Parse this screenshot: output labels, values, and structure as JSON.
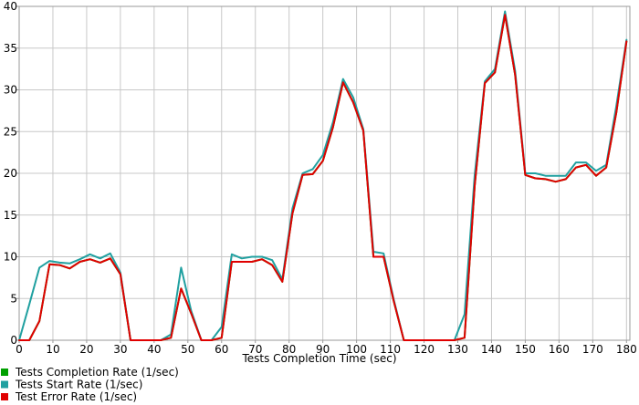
{
  "chart_data": {
    "type": "line",
    "title": "",
    "xlabel": "Tests Completion Time (sec)",
    "ylabel": "",
    "xlim": [
      0,
      181
    ],
    "ylim": [
      0,
      40
    ],
    "x_ticks": [
      0,
      10,
      20,
      30,
      40,
      50,
      60,
      70,
      80,
      90,
      100,
      110,
      120,
      130,
      140,
      150,
      160,
      170,
      180
    ],
    "y_ticks": [
      0,
      5,
      10,
      15,
      20,
      25,
      30,
      35,
      40
    ],
    "grid": true,
    "legend_position": "bottom-left",
    "series": [
      {
        "name": "Tests Completion Rate (1/sec)",
        "color": "#00a000",
        "x": [
          0,
          3,
          6,
          9,
          12,
          15,
          18,
          21,
          24,
          27,
          30,
          33,
          36,
          39,
          42,
          45,
          48,
          51,
          54,
          57,
          60,
          63,
          66,
          69,
          72,
          75,
          78,
          81,
          84,
          87,
          90,
          93,
          96,
          99,
          102,
          105,
          108,
          111,
          114,
          117,
          120,
          123,
          126,
          129,
          132,
          135,
          138,
          141,
          144,
          147,
          150,
          153,
          156,
          159,
          162,
          165,
          168,
          171,
          174,
          177,
          180
        ],
        "y": [
          0,
          0,
          2.3,
          9.1,
          9,
          8.6,
          9.4,
          9.7,
          9.3,
          9.8,
          7.9,
          0,
          0,
          0,
          0,
          0.3,
          6.2,
          3.2,
          0,
          0,
          0.3,
          9.4,
          9.4,
          9.4,
          9.7,
          9,
          7,
          15.2,
          19.8,
          19.9,
          21.5,
          25.5,
          30.9,
          28.5,
          25.1,
          10,
          10,
          4.7,
          0,
          0,
          0,
          0,
          0,
          0,
          0.3,
          18.5,
          30.8,
          32.1,
          39,
          31.8,
          19.8,
          19.4,
          19.3,
          19,
          19.3,
          20.7,
          21,
          19.7,
          20.7,
          27.3,
          35.8
        ]
      },
      {
        "name": "Tests Start Rate (1/sec)",
        "color": "#20a0a0",
        "x": [
          0,
          3,
          6,
          9,
          12,
          15,
          18,
          21,
          24,
          27,
          30,
          33,
          36,
          39,
          42,
          45,
          48,
          51,
          54,
          57,
          60,
          63,
          66,
          69,
          72,
          75,
          78,
          81,
          84,
          87,
          90,
          93,
          96,
          99,
          102,
          105,
          108,
          111,
          114,
          117,
          120,
          123,
          126,
          129,
          132,
          135,
          138,
          141,
          144,
          147,
          150,
          153,
          156,
          159,
          162,
          165,
          168,
          171,
          174,
          177,
          180
        ],
        "y": [
          0,
          4.3,
          8.7,
          9.5,
          9.3,
          9.2,
          9.7,
          10.3,
          9.8,
          10.4,
          8.1,
          0,
          0,
          0,
          0,
          0.7,
          8.7,
          3.5,
          0,
          0,
          1.6,
          10.3,
          9.8,
          10,
          10,
          9.6,
          7.3,
          15.8,
          20,
          20.5,
          22.2,
          26.1,
          31.3,
          29.1,
          25.3,
          10.6,
          10.4,
          4.9,
          0,
          0,
          0,
          0,
          0,
          0,
          3.1,
          19.8,
          31,
          32.5,
          39.4,
          32.3,
          20,
          20,
          19.7,
          19.7,
          19.7,
          21.3,
          21.3,
          20.3,
          21,
          28.1,
          36
        ]
      },
      {
        "name": "Test Error Rate (1/sec)",
        "color": "#e00000",
        "x": [
          0,
          3,
          6,
          9,
          12,
          15,
          18,
          21,
          24,
          27,
          30,
          33,
          36,
          39,
          42,
          45,
          48,
          51,
          54,
          57,
          60,
          63,
          66,
          69,
          72,
          75,
          78,
          81,
          84,
          87,
          90,
          93,
          96,
          99,
          102,
          105,
          108,
          111,
          114,
          117,
          120,
          123,
          126,
          129,
          132,
          135,
          138,
          141,
          144,
          147,
          150,
          153,
          156,
          159,
          162,
          165,
          168,
          171,
          174,
          177,
          180
        ],
        "y": [
          0,
          0,
          2.3,
          9.1,
          9,
          8.6,
          9.4,
          9.7,
          9.3,
          9.8,
          7.9,
          0,
          0,
          0,
          0,
          0.3,
          6.2,
          3.2,
          0,
          0,
          0.3,
          9.4,
          9.4,
          9.4,
          9.7,
          9,
          7,
          15.2,
          19.8,
          19.9,
          21.5,
          25.5,
          30.9,
          28.5,
          25.1,
          10,
          10,
          4.7,
          0,
          0,
          0,
          0,
          0,
          0,
          0.3,
          18.5,
          30.8,
          32.1,
          39,
          31.8,
          19.8,
          19.4,
          19.3,
          19,
          19.3,
          20.7,
          21,
          19.7,
          20.7,
          27.3,
          35.8
        ]
      }
    ]
  }
}
